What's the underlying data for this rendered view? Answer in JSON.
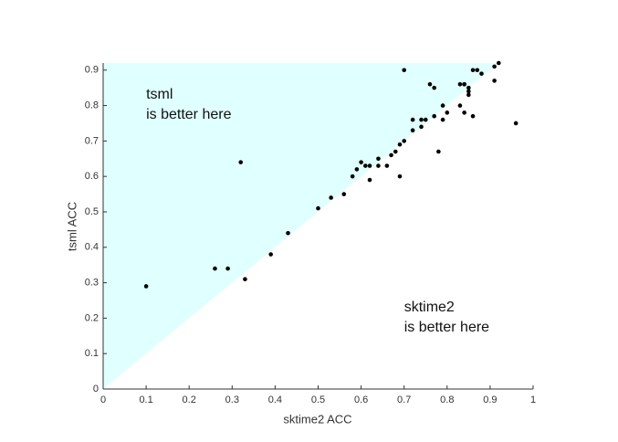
{
  "chart_data": {
    "type": "scatter",
    "xlabel": "sktime2 ACC",
    "ylabel": "tsml ACC",
    "annotations": [
      {
        "lines": [
          "tsml",
          "is better here"
        ],
        "x": 0.1,
        "y": 0.83
      },
      {
        "lines": [
          "sktime2",
          "is better here"
        ],
        "x": 0.7,
        "y": 0.23
      }
    ],
    "region_color": "#e0ffff",
    "color": "#000000",
    "xlim": [
      0,
      1
    ],
    "xticks": [
      0,
      0.1,
      0.2,
      0.3,
      0.4,
      0.5,
      0.6,
      0.7,
      0.8,
      0.9,
      1
    ],
    "ylim": [
      0,
      0.92
    ],
    "yticks": [
      0,
      0.1,
      0.2,
      0.3,
      0.4,
      0.5,
      0.6,
      0.7,
      0.8,
      0.9
    ],
    "x": [
      0.1,
      0.26,
      0.29,
      0.32,
      0.33,
      0.39,
      0.43,
      0.5,
      0.53,
      0.56,
      0.58,
      0.59,
      0.6,
      0.61,
      0.62,
      0.62,
      0.64,
      0.64,
      0.66,
      0.67,
      0.68,
      0.69,
      0.69,
      0.7,
      0.7,
      0.72,
      0.72,
      0.74,
      0.74,
      0.75,
      0.76,
      0.77,
      0.77,
      0.78,
      0.79,
      0.79,
      0.8,
      0.83,
      0.83,
      0.84,
      0.84,
      0.84,
      0.85,
      0.85,
      0.85,
      0.86,
      0.86,
      0.87,
      0.88,
      0.91,
      0.91,
      0.92,
      0.96
    ],
    "values": [
      0.29,
      0.34,
      0.34,
      0.64,
      0.31,
      0.38,
      0.44,
      0.51,
      0.54,
      0.55,
      0.6,
      0.62,
      0.64,
      0.63,
      0.63,
      0.59,
      0.65,
      0.63,
      0.63,
      0.66,
      0.67,
      0.6,
      0.69,
      0.7,
      0.9,
      0.76,
      0.73,
      0.76,
      0.74,
      0.76,
      0.86,
      0.85,
      0.77,
      0.67,
      0.76,
      0.8,
      0.78,
      0.86,
      0.8,
      0.86,
      0.78,
      0.86,
      0.85,
      0.84,
      0.83,
      0.77,
      0.9,
      0.9,
      0.89,
      0.91,
      0.87,
      0.92,
      0.75
    ]
  }
}
